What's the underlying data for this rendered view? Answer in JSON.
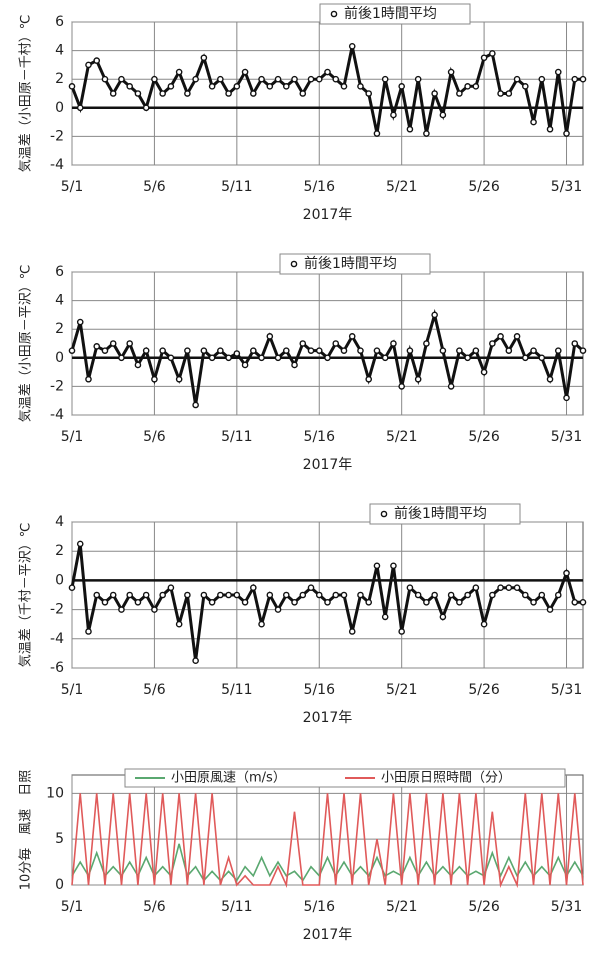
{
  "chart_data": [
    {
      "type": "line",
      "ylabel": "気温差（小田原－千村）℃",
      "xlabel": "2017年",
      "x": [
        1,
        1.5,
        2,
        2.5,
        3,
        3.5,
        4,
        4.5,
        5,
        5.5,
        6,
        6.5,
        7,
        7.5,
        8,
        8.5,
        9,
        9.5,
        10,
        10.5,
        11,
        11.5,
        12,
        12.5,
        13,
        13.5,
        14,
        14.5,
        15,
        15.5,
        16,
        16.5,
        17,
        17.5,
        18,
        18.5,
        19,
        19.5,
        20,
        20.5,
        21,
        21.5,
        22,
        22.5,
        23,
        23.5,
        24,
        24.5,
        25,
        25.5,
        26,
        26.5,
        27,
        27.5,
        28,
        28.5,
        29,
        29.5,
        30,
        30.5,
        31,
        31.5,
        32
      ],
      "series": [
        {
          "name": "前後1時間平均",
          "color": "#111111",
          "marker": "circle",
          "values": [
            1.5,
            0,
            3,
            3.3,
            2,
            1,
            2,
            1.5,
            1,
            0,
            2,
            1,
            1.5,
            2.5,
            1,
            2,
            3.5,
            1.5,
            2,
            1,
            1.5,
            2.5,
            1,
            2,
            1.5,
            2,
            1.5,
            2,
            1,
            2,
            2,
            2.5,
            2,
            1.5,
            4.3,
            1.5,
            1,
            -1.8,
            2,
            -0.5,
            1.5,
            -1.5,
            2,
            -1.8,
            1,
            -0.5,
            2.5,
            1,
            1.5,
            1.5,
            3.5,
            3.8,
            1,
            1,
            2,
            1.5,
            -1,
            2,
            -1.5,
            2.5,
            -1.8,
            2,
            2
          ]
        }
      ],
      "xlim": [
        1,
        32
      ],
      "xticks": [
        {
          "value": 1,
          "label": "5/1"
        },
        {
          "value": 6,
          "label": "5/6"
        },
        {
          "value": 11,
          "label": "5/11"
        },
        {
          "value": 16,
          "label": "5/16"
        },
        {
          "value": 21,
          "label": "5/21"
        },
        {
          "value": 26,
          "label": "5/26"
        },
        {
          "value": 31,
          "label": "5/31"
        }
      ],
      "ylim": [
        -4,
        6
      ],
      "yticks": [
        -4,
        -2,
        0,
        2,
        4,
        6
      ],
      "grid": true,
      "zero_line": true,
      "legend": "top"
    },
    {
      "type": "line",
      "ylabel": "気温差（小田原－平沢）℃",
      "xlabel": "2017年",
      "x": [
        1,
        1.5,
        2,
        2.5,
        3,
        3.5,
        4,
        4.5,
        5,
        5.5,
        6,
        6.5,
        7,
        7.5,
        8,
        8.5,
        9,
        9.5,
        10,
        10.5,
        11,
        11.5,
        12,
        12.5,
        13,
        13.5,
        14,
        14.5,
        15,
        15.5,
        16,
        16.5,
        17,
        17.5,
        18,
        18.5,
        19,
        19.5,
        20,
        20.5,
        21,
        21.5,
        22,
        22.5,
        23,
        23.5,
        24,
        24.5,
        25,
        25.5,
        26,
        26.5,
        27,
        27.5,
        28,
        28.5,
        29,
        29.5,
        30,
        30.5,
        31,
        31.5,
        32
      ],
      "series": [
        {
          "name": "前後1時間平均",
          "color": "#111111",
          "marker": "circle",
          "values": [
            0.5,
            2.5,
            -1.5,
            0.8,
            0.5,
            1,
            0,
            1,
            -0.5,
            0.5,
            -1.5,
            0.5,
            0,
            -1.5,
            0.5,
            -3.3,
            0.5,
            0,
            0.5,
            0,
            0.3,
            -0.5,
            0.5,
            0,
            1.5,
            0,
            0.5,
            -0.5,
            1,
            0.5,
            0.5,
            0,
            1,
            0.5,
            1.5,
            0.5,
            -1.5,
            0.5,
            0,
            1,
            -2,
            0.5,
            -1.5,
            1,
            3,
            0.5,
            -2,
            0.5,
            0,
            0.5,
            -1,
            1,
            1.5,
            0.5,
            1.5,
            0,
            0.5,
            0,
            -1.5,
            0.5,
            -2.8,
            1,
            0.5
          ]
        }
      ],
      "xlim": [
        1,
        32
      ],
      "xticks": [
        {
          "value": 1,
          "label": "5/1"
        },
        {
          "value": 6,
          "label": "5/6"
        },
        {
          "value": 11,
          "label": "5/11"
        },
        {
          "value": 16,
          "label": "5/16"
        },
        {
          "value": 21,
          "label": "5/21"
        },
        {
          "value": 26,
          "label": "5/26"
        },
        {
          "value": 31,
          "label": "5/31"
        }
      ],
      "ylim": [
        -4,
        6
      ],
      "yticks": [
        -4,
        -2,
        0,
        2,
        4,
        6
      ],
      "grid": true,
      "zero_line": true,
      "legend": "top"
    },
    {
      "type": "line",
      "ylabel": "気温差（千村－平沢）℃",
      "xlabel": "2017年",
      "x": [
        1,
        1.5,
        2,
        2.5,
        3,
        3.5,
        4,
        4.5,
        5,
        5.5,
        6,
        6.5,
        7,
        7.5,
        8,
        8.5,
        9,
        9.5,
        10,
        10.5,
        11,
        11.5,
        12,
        12.5,
        13,
        13.5,
        14,
        14.5,
        15,
        15.5,
        16,
        16.5,
        17,
        17.5,
        18,
        18.5,
        19,
        19.5,
        20,
        20.5,
        21,
        21.5,
        22,
        22.5,
        23,
        23.5,
        24,
        24.5,
        25,
        25.5,
        26,
        26.5,
        27,
        27.5,
        28,
        28.5,
        29,
        29.5,
        30,
        30.5,
        31,
        31.5,
        32
      ],
      "series": [
        {
          "name": "前後1時間平均",
          "color": "#111111",
          "marker": "circle",
          "values": [
            -0.5,
            2.5,
            -3.5,
            -1,
            -1.5,
            -1,
            -2,
            -1,
            -1.5,
            -1,
            -2,
            -1,
            -0.5,
            -3,
            -1,
            -5.5,
            -1,
            -1.5,
            -1,
            -1,
            -1,
            -1.5,
            -0.5,
            -3,
            -1,
            -2,
            -1,
            -1.5,
            -1,
            -0.5,
            -1,
            -1.5,
            -1,
            -1,
            -3.5,
            -1,
            -1.5,
            1,
            -2.5,
            1,
            -3.5,
            -0.5,
            -1,
            -1.5,
            -1,
            -2.5,
            -1,
            -1.5,
            -1,
            -0.5,
            -3,
            -1,
            -0.5,
            -0.5,
            -0.5,
            -1,
            -1.5,
            -1,
            -2,
            -1,
            0.5,
            -1.5,
            -1.5
          ]
        }
      ],
      "xlim": [
        1,
        32
      ],
      "xticks": [
        {
          "value": 1,
          "label": "5/1"
        },
        {
          "value": 6,
          "label": "5/6"
        },
        {
          "value": 11,
          "label": "5/11"
        },
        {
          "value": 16,
          "label": "5/16"
        },
        {
          "value": 21,
          "label": "5/21"
        },
        {
          "value": 26,
          "label": "5/26"
        },
        {
          "value": 31,
          "label": "5/31"
        }
      ],
      "ylim": [
        -6,
        4
      ],
      "yticks": [
        -6,
        -4,
        -2,
        0,
        2,
        4
      ],
      "grid": true,
      "zero_line": true,
      "legend": "top-right"
    },
    {
      "type": "line",
      "ylabel": "10分毎　風速　日照",
      "xlabel": "2017年",
      "x": [
        1,
        1.5,
        2,
        2.5,
        3,
        3.5,
        4,
        4.5,
        5,
        5.5,
        6,
        6.5,
        7,
        7.5,
        8,
        8.5,
        9,
        9.5,
        10,
        10.5,
        11,
        11.5,
        12,
        12.5,
        13,
        13.5,
        14,
        14.5,
        15,
        15.5,
        16,
        16.5,
        17,
        17.5,
        18,
        18.5,
        19,
        19.5,
        20,
        20.5,
        21,
        21.5,
        22,
        22.5,
        23,
        23.5,
        24,
        24.5,
        25,
        25.5,
        26,
        26.5,
        27,
        27.5,
        28,
        28.5,
        29,
        29.5,
        30,
        30.5,
        31,
        31.5,
        32
      ],
      "series": [
        {
          "name": "小田原風速（m/s）",
          "color": "#5aa870",
          "values": [
            1,
            2.5,
            1,
            3.5,
            1,
            2,
            1,
            2.5,
            1,
            3,
            1,
            2,
            1,
            4.5,
            1,
            2,
            0.5,
            1.5,
            0.5,
            1.5,
            0.5,
            2,
            1,
            3,
            1,
            2.5,
            1,
            1.5,
            0.5,
            2,
            1,
            3,
            1,
            2.5,
            1,
            2,
            1,
            3,
            1,
            1.5,
            1,
            3,
            1,
            2.5,
            1,
            2,
            1,
            2,
            1,
            1.5,
            1,
            3.5,
            1,
            3,
            1,
            2.5,
            1,
            2,
            1,
            3,
            1,
            2.5,
            1
          ]
        },
        {
          "name": "小田原日照時間（分）",
          "color": "#e05a5a",
          "values": [
            0,
            10,
            0,
            10,
            0,
            10,
            0,
            10,
            0,
            10,
            0,
            10,
            0,
            10,
            0,
            10,
            0,
            10,
            0,
            3,
            0,
            1,
            0,
            0,
            0,
            2,
            0,
            8,
            0,
            0,
            0,
            10,
            0,
            10,
            0,
            10,
            0,
            5,
            0,
            10,
            0,
            10,
            0,
            10,
            0,
            10,
            0,
            10,
            0,
            10,
            0,
            8,
            0,
            2,
            0,
            10,
            0,
            10,
            0,
            10,
            0,
            10,
            0
          ]
        }
      ],
      "xlim": [
        1,
        32
      ],
      "xticks": [
        {
          "value": 1,
          "label": "5/1"
        },
        {
          "value": 6,
          "label": "5/6"
        },
        {
          "value": 11,
          "label": "5/11"
        },
        {
          "value": 16,
          "label": "5/16"
        },
        {
          "value": 21,
          "label": "5/21"
        },
        {
          "value": 26,
          "label": "5/26"
        },
        {
          "value": 31,
          "label": "5/31"
        }
      ],
      "ylim": [
        0,
        12
      ],
      "yticks": [
        0,
        5,
        10
      ],
      "grid": true,
      "zero_line": false,
      "legend": "top"
    }
  ]
}
